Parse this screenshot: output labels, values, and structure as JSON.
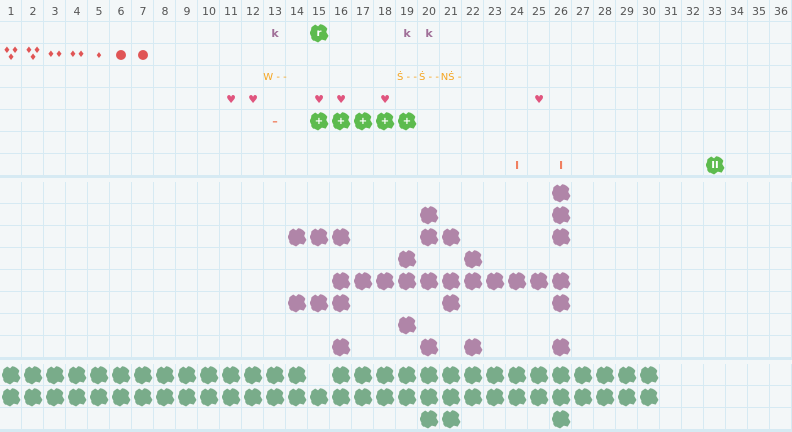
{
  "columns": [
    "1",
    "2",
    "3",
    "4",
    "5",
    "6",
    "7",
    "8",
    "9",
    "10",
    "11",
    "12",
    "13",
    "14",
    "15",
    "16",
    "17",
    "18",
    "19",
    "20",
    "21",
    "22",
    "23",
    "24",
    "25",
    "26",
    "27",
    "28",
    "29",
    "30",
    "31",
    "32",
    "33",
    "34",
    "35",
    "36"
  ],
  "colors": {
    "purple": "#b085a8",
    "green_bright": "#5dbb4e",
    "green_dark": "#79ac8a",
    "red": "#e05555",
    "pink": "#e0557e",
    "orange": "#f5a623",
    "salmon": "#f08060",
    "letter": "#a07098"
  },
  "top_items": [
    {
      "row": 1,
      "col": 13,
      "type": "text",
      "text": "k",
      "color": "#a07098"
    },
    {
      "row": 1,
      "col": 15,
      "type": "blob",
      "text": "r",
      "color": "#5dbb4e"
    },
    {
      "row": 1,
      "col": 19,
      "type": "text",
      "text": "k",
      "color": "#a07098"
    },
    {
      "row": 1,
      "col": 20,
      "type": "text",
      "text": "k",
      "color": "#a07098"
    },
    {
      "row": 2,
      "col": 1,
      "type": "drops",
      "count": 3
    },
    {
      "row": 2,
      "col": 2,
      "type": "drops",
      "count": 3
    },
    {
      "row": 2,
      "col": 3,
      "type": "drops",
      "count": 2
    },
    {
      "row": 2,
      "col": 4,
      "type": "drops",
      "count": 2
    },
    {
      "row": 2,
      "col": 5,
      "type": "drops",
      "count": 1
    },
    {
      "row": 2,
      "col": 6,
      "type": "dot"
    },
    {
      "row": 2,
      "col": 7,
      "type": "dot"
    },
    {
      "row": 3,
      "col": 13,
      "type": "label",
      "text": "W - -",
      "color": "#f5a623"
    },
    {
      "row": 3,
      "col": 19,
      "type": "label",
      "text": "Ṡ - -",
      "color": "#f5a623"
    },
    {
      "row": 3,
      "col": 20,
      "type": "label",
      "text": "Ṡ - -",
      "color": "#f5a623"
    },
    {
      "row": 3,
      "col": 21,
      "type": "label",
      "text": "NṠ -",
      "color": "#f5a623"
    },
    {
      "row": 4,
      "col": 11,
      "type": "heart"
    },
    {
      "row": 4,
      "col": 12,
      "type": "heart"
    },
    {
      "row": 4,
      "col": 15,
      "type": "heart"
    },
    {
      "row": 4,
      "col": 16,
      "type": "heart"
    },
    {
      "row": 4,
      "col": 18,
      "type": "heart"
    },
    {
      "row": 4,
      "col": 25,
      "type": "heart"
    },
    {
      "row": 5,
      "col": 13,
      "type": "text",
      "text": "–",
      "color": "#f08060"
    },
    {
      "row": 5,
      "col": 15,
      "type": "blob",
      "text": "+",
      "color": "#5dbb4e"
    },
    {
      "row": 5,
      "col": 16,
      "type": "blob",
      "text": "+",
      "color": "#5dbb4e"
    },
    {
      "row": 5,
      "col": 17,
      "type": "blob",
      "text": "+",
      "color": "#5dbb4e"
    },
    {
      "row": 5,
      "col": 18,
      "type": "blob",
      "text": "+",
      "color": "#5dbb4e"
    },
    {
      "row": 5,
      "col": 19,
      "type": "blob",
      "text": "+",
      "color": "#5dbb4e"
    },
    {
      "row": 7,
      "col": 24,
      "type": "text",
      "text": "I",
      "color": "#f08060"
    },
    {
      "row": 7,
      "col": 26,
      "type": "text",
      "text": "I",
      "color": "#f08060"
    },
    {
      "row": 7,
      "col": 33,
      "type": "blob",
      "text": "II",
      "color": "#5dbb4e"
    }
  ],
  "purple_rows": [
    [
      26
    ],
    [
      20,
      26
    ],
    [
      14,
      15,
      16,
      20,
      21,
      26
    ],
    [
      19,
      22
    ],
    [
      16,
      17,
      18,
      19,
      20,
      21,
      22,
      23,
      24,
      25,
      26
    ],
    [
      14,
      15,
      16,
      21,
      26
    ],
    [
      19
    ],
    [
      16,
      20,
      22,
      26
    ]
  ],
  "green_rows": [
    [
      1,
      2,
      3,
      4,
      5,
      6,
      7,
      8,
      9,
      10,
      11,
      12,
      13,
      14,
      16,
      17,
      18,
      19,
      20,
      21,
      22,
      23,
      24,
      25,
      26,
      27,
      28,
      29,
      30
    ],
    [
      1,
      2,
      3,
      4,
      5,
      6,
      7,
      8,
      9,
      10,
      11,
      12,
      13,
      14,
      15,
      16,
      17,
      18,
      19,
      20,
      21,
      22,
      23,
      24,
      25,
      26,
      27,
      28,
      29,
      30
    ],
    [
      20,
      21,
      26
    ]
  ]
}
